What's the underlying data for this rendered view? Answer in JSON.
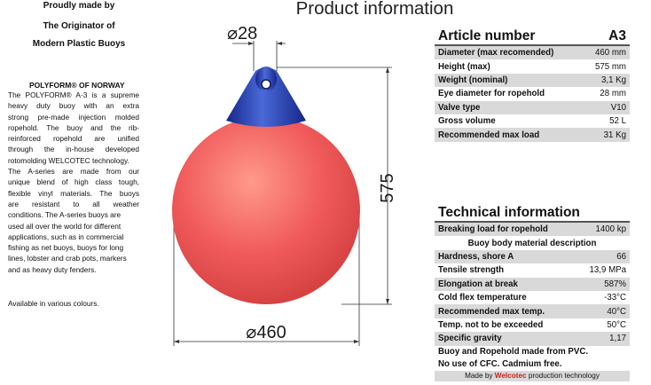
{
  "header": {
    "line1": "Proudly made by",
    "line2": "The Originator of",
    "line3": "Modern Plastic Buoys",
    "page_title": "Product information"
  },
  "intro": {
    "brand": "POLYFORM® OF NORWAY",
    "description_lines": [
      "The POLYFORM® A-3 is a supreme",
      "heavy duty buoy with an extra",
      "strong pre-made injection molded",
      "ropehold. The buoy and the rib-",
      "reinforced ropehold are unified",
      "through the in-house developed",
      "rotomolding WELCOTEC technology.",
      "The A-series are made from our",
      "unique blend of high class tough,",
      "flexible vinyl materials. The buoys",
      "are resistant to all weather",
      "conditions. The A-series buoys are",
      "used all over the world for different",
      "applications, such as in commercial",
      "fishing as net buoys, buoys for long",
      "lines, lobster and crab pots, markers",
      "and as heavy duty fenders."
    ],
    "availability": "Available in various colours."
  },
  "drawing": {
    "eye_dim": "⌀28",
    "height_dim": "575",
    "diameter_dim": "⌀460",
    "colors": {
      "body": "#f05a5a",
      "body_highlight": "#ff9a8a",
      "top": "#1f35a8",
      "top_highlight": "#4a6ad8"
    }
  },
  "article": {
    "label": "Article number",
    "value": "A3",
    "rows": [
      {
        "k": "Diameter (max recomended)",
        "v": "460 mm"
      },
      {
        "k": "Height (max)",
        "v": "575 mm"
      },
      {
        "k": "Weight (nominal)",
        "v": "3,1 Kg"
      },
      {
        "k": "Eye diameter for ropehold",
        "v": "28 mm"
      },
      {
        "k": "Valve type",
        "v": "V10"
      },
      {
        "k": "Gross volume",
        "v": "52 L"
      },
      {
        "k": "Recommended max load",
        "v": "31 Kg"
      }
    ]
  },
  "technical": {
    "title": "Technical information",
    "load_row": {
      "k": "Breaking load for ropehold",
      "v": "1400 kp"
    },
    "material_header": "Buoy body material description",
    "rows": [
      {
        "k": "Hardness, shore A",
        "v": "66"
      },
      {
        "k": "Tensile strength",
        "v": "13,9 MPa"
      },
      {
        "k": "Elongation at break",
        "v": "587%"
      },
      {
        "k": "Cold flex temperature",
        "v": "-33°C"
      },
      {
        "k": "Recommended max temp.",
        "v": "40°C"
      },
      {
        "k": "Temp. not to be exceeded",
        "v": "50°C"
      },
      {
        "k": "Specific gravity",
        "v": "1,17"
      }
    ],
    "note1": "Buoy and Ropehold made from PVC.",
    "note2": "No use of CFC. Cadmium free.",
    "footer_prefix": "Made by ",
    "footer_brand": "Welcotec",
    "footer_suffix": " production technology"
  }
}
